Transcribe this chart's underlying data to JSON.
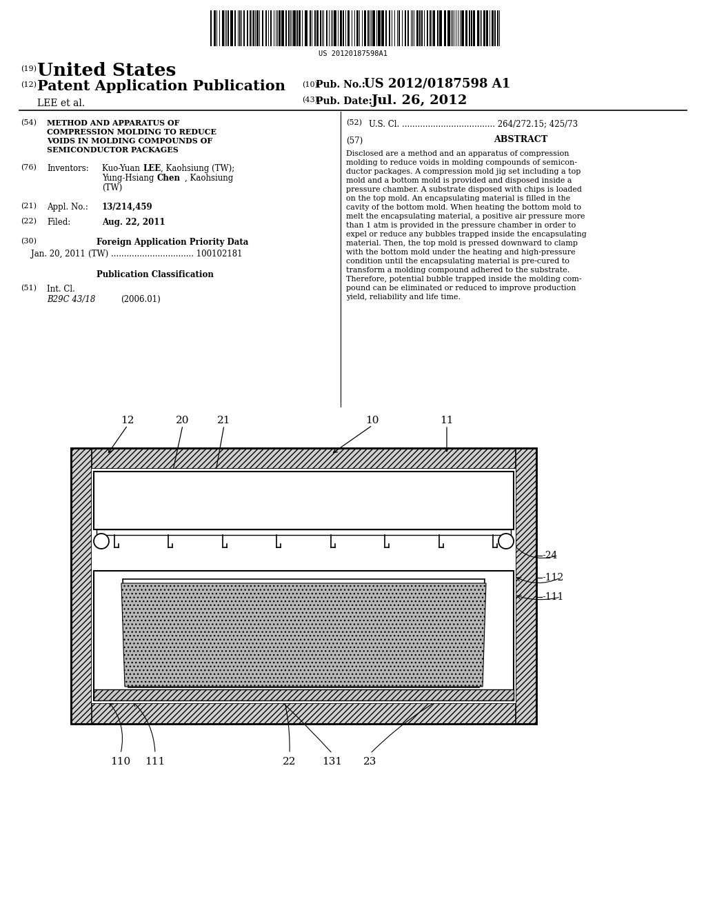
{
  "bg_color": "#ffffff",
  "barcode_text": "US 20120187598A1",
  "header_united_states": "United States",
  "header_patent_app": "Patent Application Publication",
  "header_pub_no": "US 2012/0187598 A1",
  "header_lee": "LEE et al.",
  "header_pub_date": "Jul. 26, 2012",
  "abstract_text": "Disclosed are a method and an apparatus of compression\nmolding to reduce voids in molding compounds of semicon-\nductor packages. A compression mold jig set including a top\nmold and a bottom mold is provided and disposed inside a\npressure chamber. A substrate disposed with chips is loaded\non the top mold. An encapsulating material is filled in the\ncavity of the bottom mold. When heating the bottom mold to\nmelt the encapsulating material, a positive air pressure more\nthan 1 atm is provided in the pressure chamber in order to\nexpel or reduce any bubbles trapped inside the encapsulating\nmaterial. Then, the top mold is pressed downward to clamp\nwith the bottom mold under the heating and high-pressure\ncondition until the encapsulating material is pre-cured to\ntransform a molding compound adhered to the substrate.\nTherefore, potential bubble trapped inside the molding com-\npound can be eliminated or reduced to improve production\nyield, reliability and life time."
}
